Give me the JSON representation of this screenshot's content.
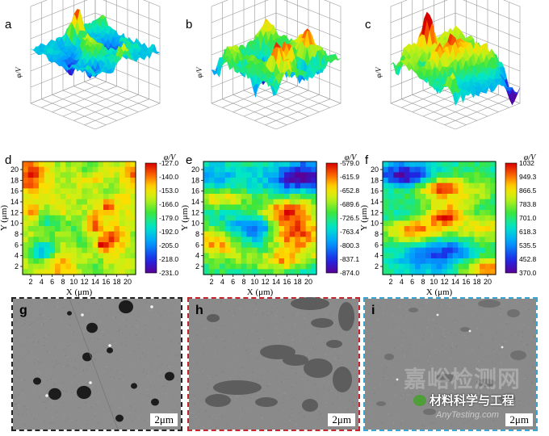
{
  "panels3d": [
    {
      "label": "a",
      "zlabel": "φ/V",
      "variant": 0
    },
    {
      "label": "b",
      "zlabel": "φ/V",
      "variant": 1
    },
    {
      "label": "c",
      "zlabel": "φ/V",
      "variant": 2
    }
  ],
  "maps": [
    {
      "label": "d",
      "xlabel": "X (μm)",
      "ylabel": "Y (μm)",
      "cbar_title": "φ/V",
      "cbar_ticks": [
        "-127.0",
        "-140.0",
        "-153.0",
        "-166.0",
        "-179.0",
        "-192.0",
        "-205.0",
        "-218.0",
        "-231.0"
      ],
      "variant": 0
    },
    {
      "label": "e",
      "xlabel": "X (μm)",
      "ylabel": "Y (μm)",
      "cbar_title": "φ/V",
      "cbar_ticks": [
        "-579.0",
        "-615.9",
        "-652.8",
        "-689.6",
        "-726.5",
        "-763.4",
        "-800.3",
        "-837.1",
        "-874.0"
      ],
      "variant": 1
    },
    {
      "label": "f",
      "xlabel": "X (μm)",
      "ylabel": "Y (μm)",
      "cbar_title": "φ/V",
      "cbar_ticks": [
        "1032",
        "949.3",
        "866.5",
        "783.8",
        "701.0",
        "618.3",
        "535.5",
        "452.8",
        "370.0"
      ],
      "variant": 2
    }
  ],
  "axis_ticks": {
    "x": [
      "2",
      "4",
      "6",
      "8",
      "10",
      "12",
      "14",
      "16",
      "18",
      "20"
    ],
    "y": [
      "2",
      "4",
      "6",
      "8",
      "10",
      "12",
      "14",
      "16",
      "18",
      "20"
    ]
  },
  "sem": [
    {
      "label": "g",
      "scale": "2μm",
      "border": "#222222"
    },
    {
      "label": "h",
      "scale": "2μm",
      "border": "#c0262b"
    },
    {
      "label": "i",
      "scale": "2μm",
      "border": "#3aa6cf"
    }
  ],
  "watermark": {
    "title": "材料科学与工程",
    "logo_text": "嘉峪检测网",
    "url": "AnyTesting.com"
  },
  "colors": {
    "accent_red": "#c0262b",
    "accent_blue": "#3aa6cf",
    "wechat_green": "#4f9e3a"
  }
}
